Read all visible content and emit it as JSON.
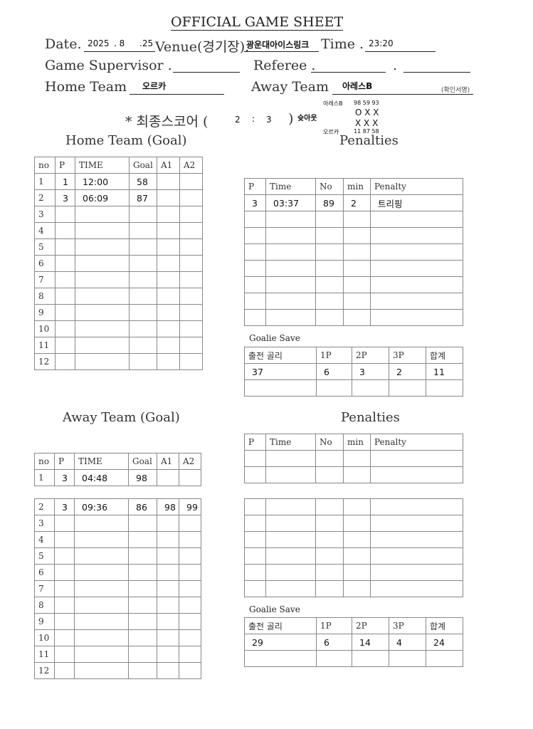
{
  "title": "OFFICIAL GAME SHEET",
  "header": {
    "date_label": "Date.",
    "date_year": "2025",
    "date_month": ". 8",
    "date_day": ".25",
    "venue_label": "Venue(경기장).",
    "venue": "광운대아이스링크",
    "time_label": "Time .",
    "time": "23:20",
    "supervisor_label": "Game Supervisor .",
    "referee_label": "Referee .",
    "referee_sep": ".",
    "home_label": "Home Team",
    "home": "오르카",
    "away_label": "Away Team",
    "away": "아레스B",
    "sign_note": "(확인서명)"
  },
  "score": {
    "label": "* 최종스코어 (",
    "home": "2",
    "sep": ":",
    "away": "3",
    "close": ")",
    "shootout_label": "슛아웃",
    "shootout": {
      "away_team": "아레스B",
      "away_numbers": "98  59  93",
      "away_results": "O  X  X",
      "home_results": "X  X  X",
      "home_team": "오르카",
      "home_numbers": "11   87  58"
    }
  },
  "home_goal": {
    "title": "Home Team (Goal)",
    "headers": [
      "no",
      "P",
      "TIME",
      "Goal",
      "A1",
      "A2"
    ],
    "rows": [
      [
        "1",
        "1",
        "12:00",
        "58",
        "",
        ""
      ],
      [
        "2",
        "3",
        "06:09",
        "87",
        "",
        ""
      ],
      [
        "3",
        "",
        "",
        "",
        "",
        ""
      ],
      [
        "4",
        "",
        "",
        "",
        "",
        ""
      ],
      [
        "5",
        "",
        "",
        "",
        "",
        ""
      ],
      [
        "6",
        "",
        "",
        "",
        "",
        ""
      ],
      [
        "7",
        "",
        "",
        "",
        "",
        ""
      ],
      [
        "8",
        "",
        "",
        "",
        "",
        ""
      ],
      [
        "9",
        "",
        "",
        "",
        "",
        ""
      ],
      [
        "10",
        "",
        "",
        "",
        "",
        ""
      ],
      [
        "11",
        "",
        "",
        "",
        "",
        ""
      ],
      [
        "12",
        "",
        "",
        "",
        "",
        ""
      ]
    ]
  },
  "home_pen": {
    "title": "Penalties",
    "headers": [
      "P",
      "Time",
      "No",
      "min",
      "Penalty"
    ],
    "rows": [
      [
        "3",
        "03:37",
        "89",
        "2",
        "트리핑"
      ],
      [
        "",
        "",
        "",
        "",
        ""
      ],
      [
        "",
        "",
        "",
        "",
        ""
      ],
      [
        "",
        "",
        "",
        "",
        ""
      ],
      [
        "",
        "",
        "",
        "",
        ""
      ],
      [
        "",
        "",
        "",
        "",
        ""
      ],
      [
        "",
        "",
        "",
        "",
        ""
      ],
      [
        "",
        "",
        "",
        "",
        ""
      ]
    ]
  },
  "home_save": {
    "label": "Goalie Save",
    "headers": [
      "출전 골리",
      "1P",
      "2P",
      "3P",
      "합계"
    ],
    "rows": [
      [
        "37",
        "6",
        "3",
        "2",
        "11"
      ],
      [
        "",
        "",
        "",
        "",
        ""
      ]
    ]
  },
  "away_goal": {
    "title": "Away Team (Goal)",
    "headers": [
      "no",
      "P",
      "TIME",
      "Goal",
      "A1",
      "A2"
    ],
    "rows_a": [
      [
        "1",
        "3",
        "04:48",
        "98",
        "",
        ""
      ]
    ],
    "rows_b": [
      [
        "2",
        "3",
        "09:36",
        "86",
        "98",
        "99"
      ],
      [
        "3",
        "",
        "",
        "",
        "",
        ""
      ],
      [
        "4",
        "",
        "",
        "",
        "",
        ""
      ],
      [
        "5",
        "",
        "",
        "",
        "",
        ""
      ],
      [
        "6",
        "",
        "",
        "",
        "",
        ""
      ],
      [
        "7",
        "",
        "",
        "",
        "",
        ""
      ],
      [
        "8",
        "",
        "",
        "",
        "",
        ""
      ],
      [
        "9",
        "",
        "",
        "",
        "",
        ""
      ],
      [
        "10",
        "",
        "",
        "",
        "",
        ""
      ],
      [
        "11",
        "",
        "",
        "",
        "",
        ""
      ],
      [
        "12",
        "",
        "",
        "",
        "",
        ""
      ]
    ]
  },
  "away_pen": {
    "title": "Penalties",
    "headers": [
      "P",
      "Time",
      "No",
      "min",
      "Penalty"
    ],
    "rows_a": [
      [
        "",
        "",
        "",
        "",
        ""
      ],
      [
        "",
        "",
        "",
        "",
        ""
      ]
    ],
    "rows_b": [
      [
        "",
        "",
        "",
        "",
        ""
      ],
      [
        "",
        "",
        "",
        "",
        ""
      ],
      [
        "",
        "",
        "",
        "",
        ""
      ],
      [
        "",
        "",
        "",
        "",
        ""
      ],
      [
        "",
        "",
        "",
        "",
        ""
      ],
      [
        "",
        "",
        "",
        "",
        ""
      ]
    ]
  },
  "away_save": {
    "label": "Goalie Save",
    "headers": [
      "출전 골리",
      "1P",
      "2P",
      "3P",
      "합계"
    ],
    "rows": [
      [
        "29",
        "6",
        "14",
        "4",
        "24"
      ],
      [
        "",
        "",
        "",
        "",
        ""
      ]
    ]
  }
}
